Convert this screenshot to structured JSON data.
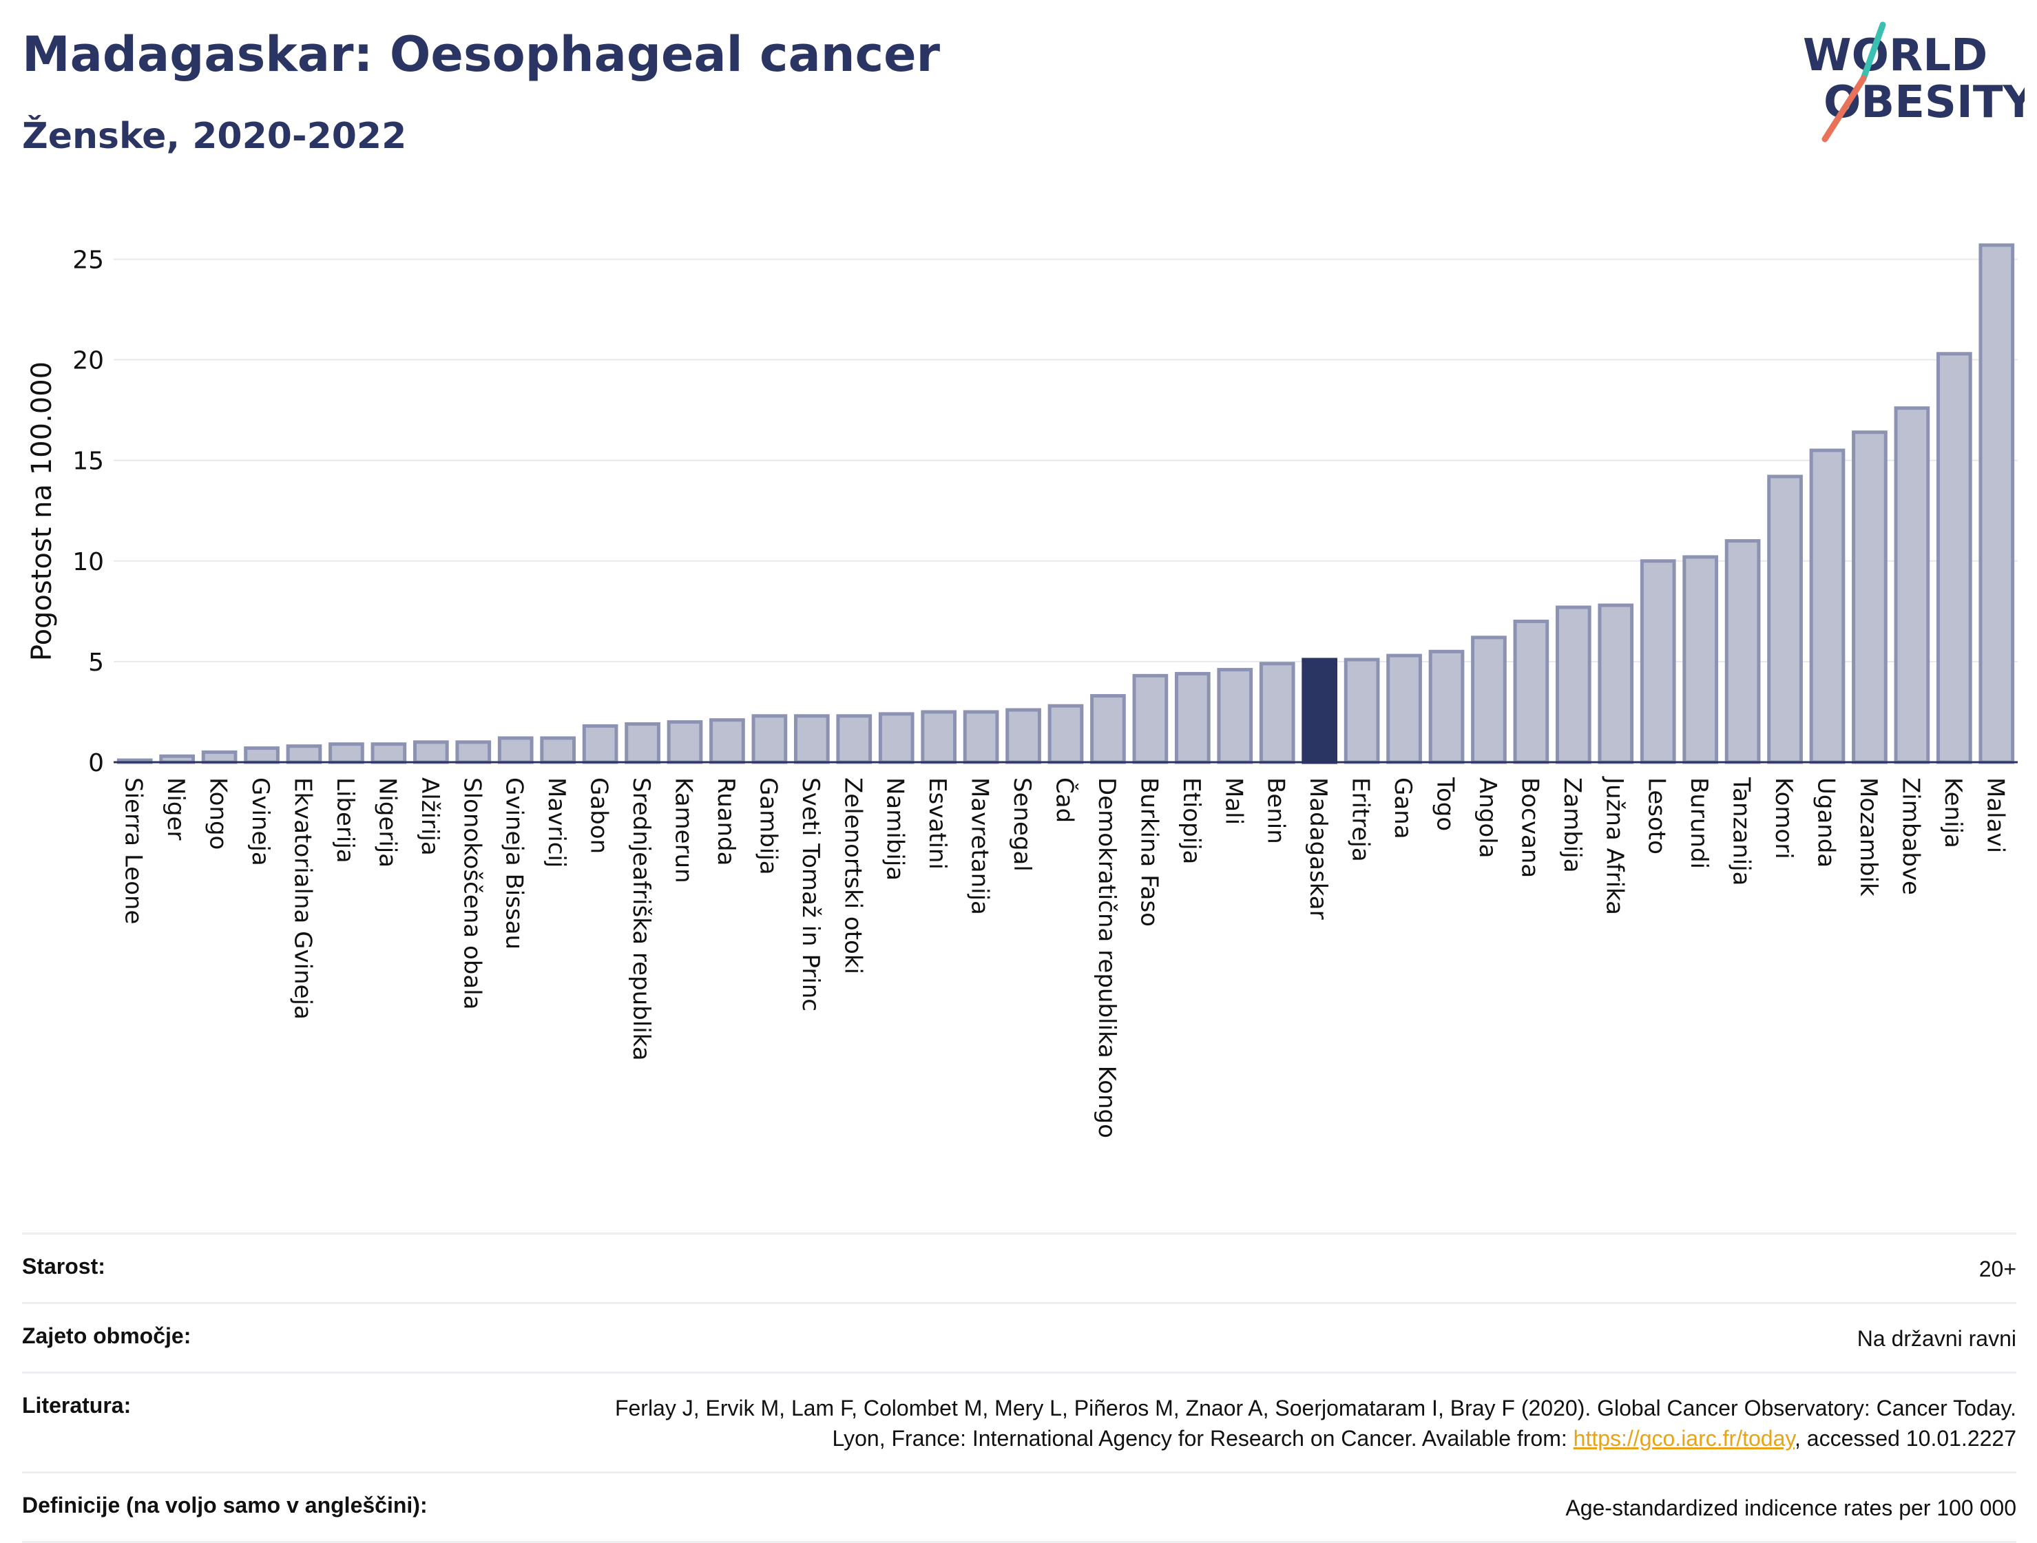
{
  "header": {
    "title": "Madagaskar: Oesophageal cancer",
    "subtitle": "Ženske, 2020-2022"
  },
  "logo": {
    "line1": "WORLD",
    "line2": "OBESITY",
    "accent_teal": "#3bbfb0",
    "accent_coral": "#e8735a"
  },
  "colors": {
    "bar": "#bcc0d1",
    "bar_stroke": "#8c93b2",
    "bar_highlight": "#2b3563",
    "text": "#2b3563"
  },
  "chart_data": {
    "type": "bar",
    "ylabel": "Pogostost na 100.000",
    "ylim": [
      0,
      27
    ],
    "yticks": [
      0,
      5,
      10,
      15,
      20,
      25
    ],
    "grid": true,
    "highlight": "Madagaskar",
    "categories": [
      "Sierra Leone",
      "Niger",
      "Kongo",
      "Gvineja",
      "Ekvatorialna Gvineja",
      "Liberija",
      "Nigerija",
      "Alžirija",
      "Slonokoščena obala",
      "Gvineja Bissau",
      "Mavricij",
      "Gabon",
      "Srednjeafriška republika",
      "Kamerun",
      "Ruanda",
      "Gambija",
      "Sveti Tomaž in Princ",
      "Zelenortski otoki",
      "Namibija",
      "Esvatini",
      "Mavretanija",
      "Senegal",
      "Čad",
      "Demokratična republika Kongo",
      "Burkina Faso",
      "Etiopija",
      "Mali",
      "Benin",
      "Madagaskar",
      "Eritreja",
      "Gana",
      "Togo",
      "Angola",
      "Bocvana",
      "Zambija",
      "Južna Afrika",
      "Lesoto",
      "Burundi",
      "Tanzanija",
      "Komori",
      "Uganda",
      "Mozambik",
      "Zimbabve",
      "Kenija",
      "Malavi"
    ],
    "values": [
      0.1,
      0.3,
      0.5,
      0.7,
      0.8,
      0.9,
      0.9,
      1.0,
      1.0,
      1.2,
      1.2,
      1.8,
      1.9,
      2.0,
      2.1,
      2.3,
      2.3,
      2.3,
      2.4,
      2.5,
      2.5,
      2.6,
      2.8,
      3.3,
      4.3,
      4.4,
      4.6,
      4.9,
      5.1,
      5.1,
      5.3,
      5.5,
      6.2,
      7.0,
      7.7,
      7.8,
      10.0,
      10.2,
      11.0,
      14.2,
      15.5,
      16.4,
      17.6,
      20.3,
      25.7
    ]
  },
  "info": {
    "rows": [
      {
        "label": "Starost:",
        "value": "20+"
      },
      {
        "label": "Zajeto območje:",
        "value": "Na državni ravni"
      },
      {
        "label": "Literatura:",
        "value_pre": "Ferlay J, Ervik M, Lam F, Colombet M, Mery L, Piñeros M, Znaor A, Soerjomataram I, Bray F (2020). Global Cancer Observatory: Cancer Today. Lyon, France: International Agency for Research on Cancer. Available from: ",
        "link": "https://gco.iarc.fr/today",
        "value_post": ", accessed 10.01.2227"
      },
      {
        "label": "Definicije (na voljo samo v angleščini):",
        "value": "Age-standardized indicence rates per 100 000"
      }
    ]
  }
}
